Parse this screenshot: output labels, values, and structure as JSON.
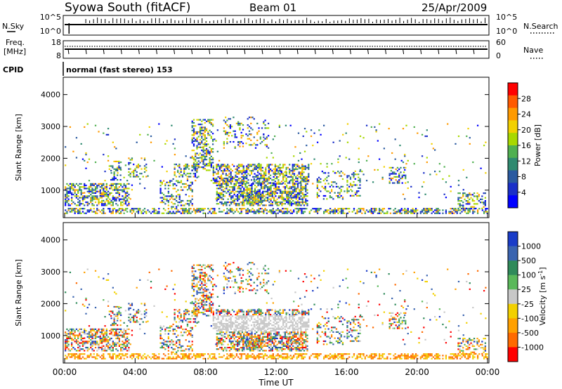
{
  "header": {
    "title": "Syowa South (fitACF)",
    "beam": "Beam 01",
    "date": "25/Apr/2009"
  },
  "chart_data": [
    {
      "type": "line",
      "panel": "noise",
      "left_label": "N.Sky",
      "right_label": "N.Search",
      "left_ticks": [
        "10^5",
        "10^0"
      ],
      "right_ticks": [
        "10^5",
        "10^0"
      ],
      "description_values": {
        "n_sky_approx_level": "10^4",
        "n_search_approx_level": "10^4"
      }
    },
    {
      "type": "line",
      "panel": "frequency",
      "left_label_top": "Freq.",
      "left_label_bottom": "[MHz]",
      "right_label": "Nave",
      "left_ticks": [
        "18",
        "8"
      ],
      "right_ticks": [
        "60",
        "0"
      ],
      "frequency_mhz_approx": 11.5
    },
    {
      "type": "text",
      "panel": "cpid",
      "label": "CPID",
      "value": "normal (fast stereo) 153"
    },
    {
      "type": "heatmap",
      "panel": "power",
      "ylabel": "Slant Range [km]",
      "yticks": [
        "4000",
        "3000",
        "2000",
        "1000"
      ],
      "ylim": [
        180,
        4500
      ],
      "xlim": [
        0,
        24
      ],
      "colorbar_label": "Power [dB]",
      "colorbar_ticks": [
        "28",
        "24",
        "20",
        "16",
        "12",
        "8",
        "4"
      ],
      "colorbar_colors": [
        "#ff0000",
        "#ff5a00",
        "#ff9a00",
        "#f2d000",
        "#a8d800",
        "#50b050",
        "#2f8a70",
        "#2a5aa0",
        "#1a2fc8",
        "#0000ff"
      ]
    },
    {
      "type": "heatmap",
      "panel": "velocity",
      "ylabel": "Slant Range [km]",
      "yticks": [
        "4000",
        "3000",
        "2000",
        "1000"
      ],
      "ylim": [
        180,
        4500
      ],
      "xlim": [
        0,
        24
      ],
      "xlabel": "Time UT",
      "xticks": [
        "00:00",
        "04:00",
        "08:00",
        "12:00",
        "16:00",
        "20:00",
        "00:00"
      ],
      "colorbar_label": "Velocity [m s",
      "colorbar_label_sup": "-1",
      "colorbar_ticks": [
        "1000",
        "500",
        "100",
        "25",
        "-25",
        "-100",
        "-500",
        "-1000"
      ],
      "colorbar_colors": [
        "#1a3cc8",
        "#3a64b0",
        "#2f8a5a",
        "#5ab85a",
        "#c8c8c8",
        "#f2d000",
        "#ffa000",
        "#ff6a00",
        "#ff0000"
      ]
    }
  ]
}
